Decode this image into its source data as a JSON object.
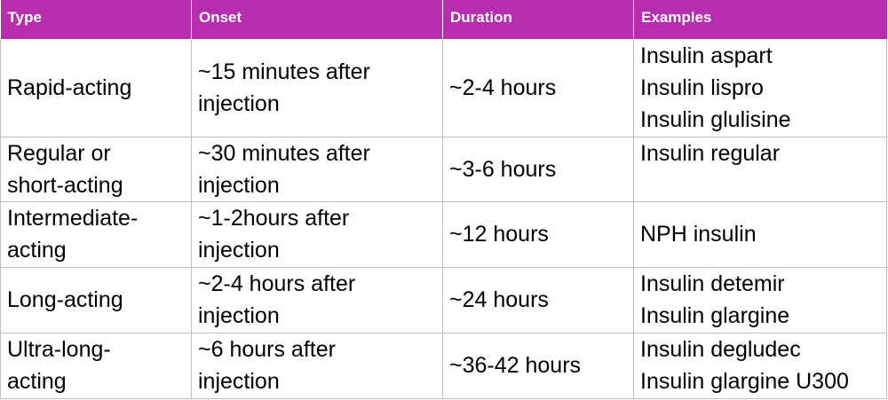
{
  "table": {
    "headers": [
      "Type",
      "Onset",
      "Duration",
      "Examples"
    ],
    "rows": [
      {
        "type": [
          "Rapid-acting"
        ],
        "onset": [
          "~15 minutes after",
          "injection"
        ],
        "duration": "~2-4 hours",
        "examples": [
          "Insulin aspart",
          "Insulin lispro",
          "Insulin glulisine"
        ]
      },
      {
        "type": [
          "Regular or",
          "short-acting"
        ],
        "onset": [
          "~30 minutes after",
          "injection"
        ],
        "duration": "~3-6 hours",
        "examples": [
          "Insulin regular"
        ]
      },
      {
        "type": [
          "Intermediate-",
          "acting"
        ],
        "onset": [
          "~1-2hours after",
          "injection"
        ],
        "duration": "~12 hours",
        "examples": [
          "NPH insulin"
        ]
      },
      {
        "type": [
          "Long-acting"
        ],
        "onset": [
          "~2-4 hours after",
          "injection"
        ],
        "duration": "~24 hours",
        "examples": [
          "Insulin detemir",
          "Insulin glargine"
        ]
      },
      {
        "type": [
          "Ultra-long-",
          "acting"
        ],
        "onset": [
          "~6 hours after",
          "injection"
        ],
        "duration": "~36-42 hours",
        "examples": [
          "Insulin degludec",
          "Insulin glargine U300"
        ]
      }
    ],
    "colors": {
      "header_bg": "#b82db0",
      "header_text": "#ffffff",
      "border": "#bfbfbf"
    }
  }
}
